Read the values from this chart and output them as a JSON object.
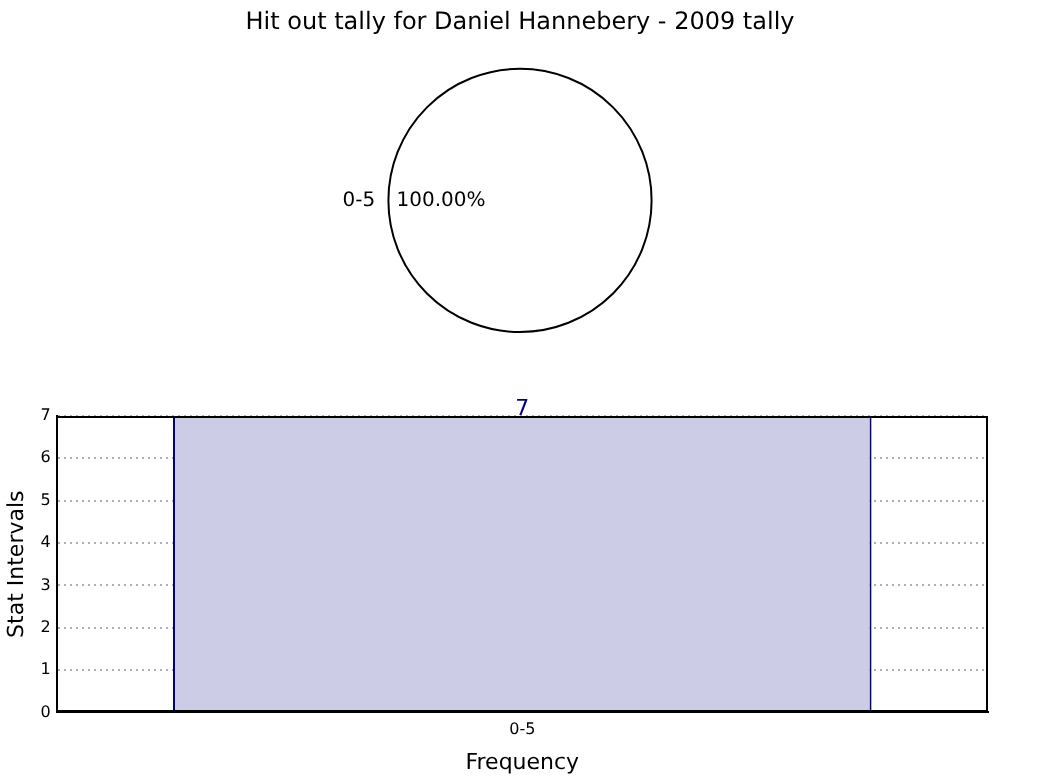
{
  "chart_data": [
    {
      "type": "pie",
      "title": "Hit out tally for Daniel Hannebery - 2009 tally",
      "categories": [
        "0-5"
      ],
      "values": [
        100
      ],
      "colors": [
        "#ffffff"
      ],
      "value_labels": [
        "100.00%"
      ]
    },
    {
      "type": "bar",
      "xlabel": "Frequency",
      "ylabel": "Stat Intervals",
      "categories": [
        "0-5"
      ],
      "values": [
        7
      ],
      "color": "#cccce6",
      "ylim": [
        0,
        7
      ],
      "yticks": [
        0,
        1,
        2,
        3,
        4,
        5,
        6,
        7
      ],
      "grid": true,
      "data_labels": true
    }
  ]
}
